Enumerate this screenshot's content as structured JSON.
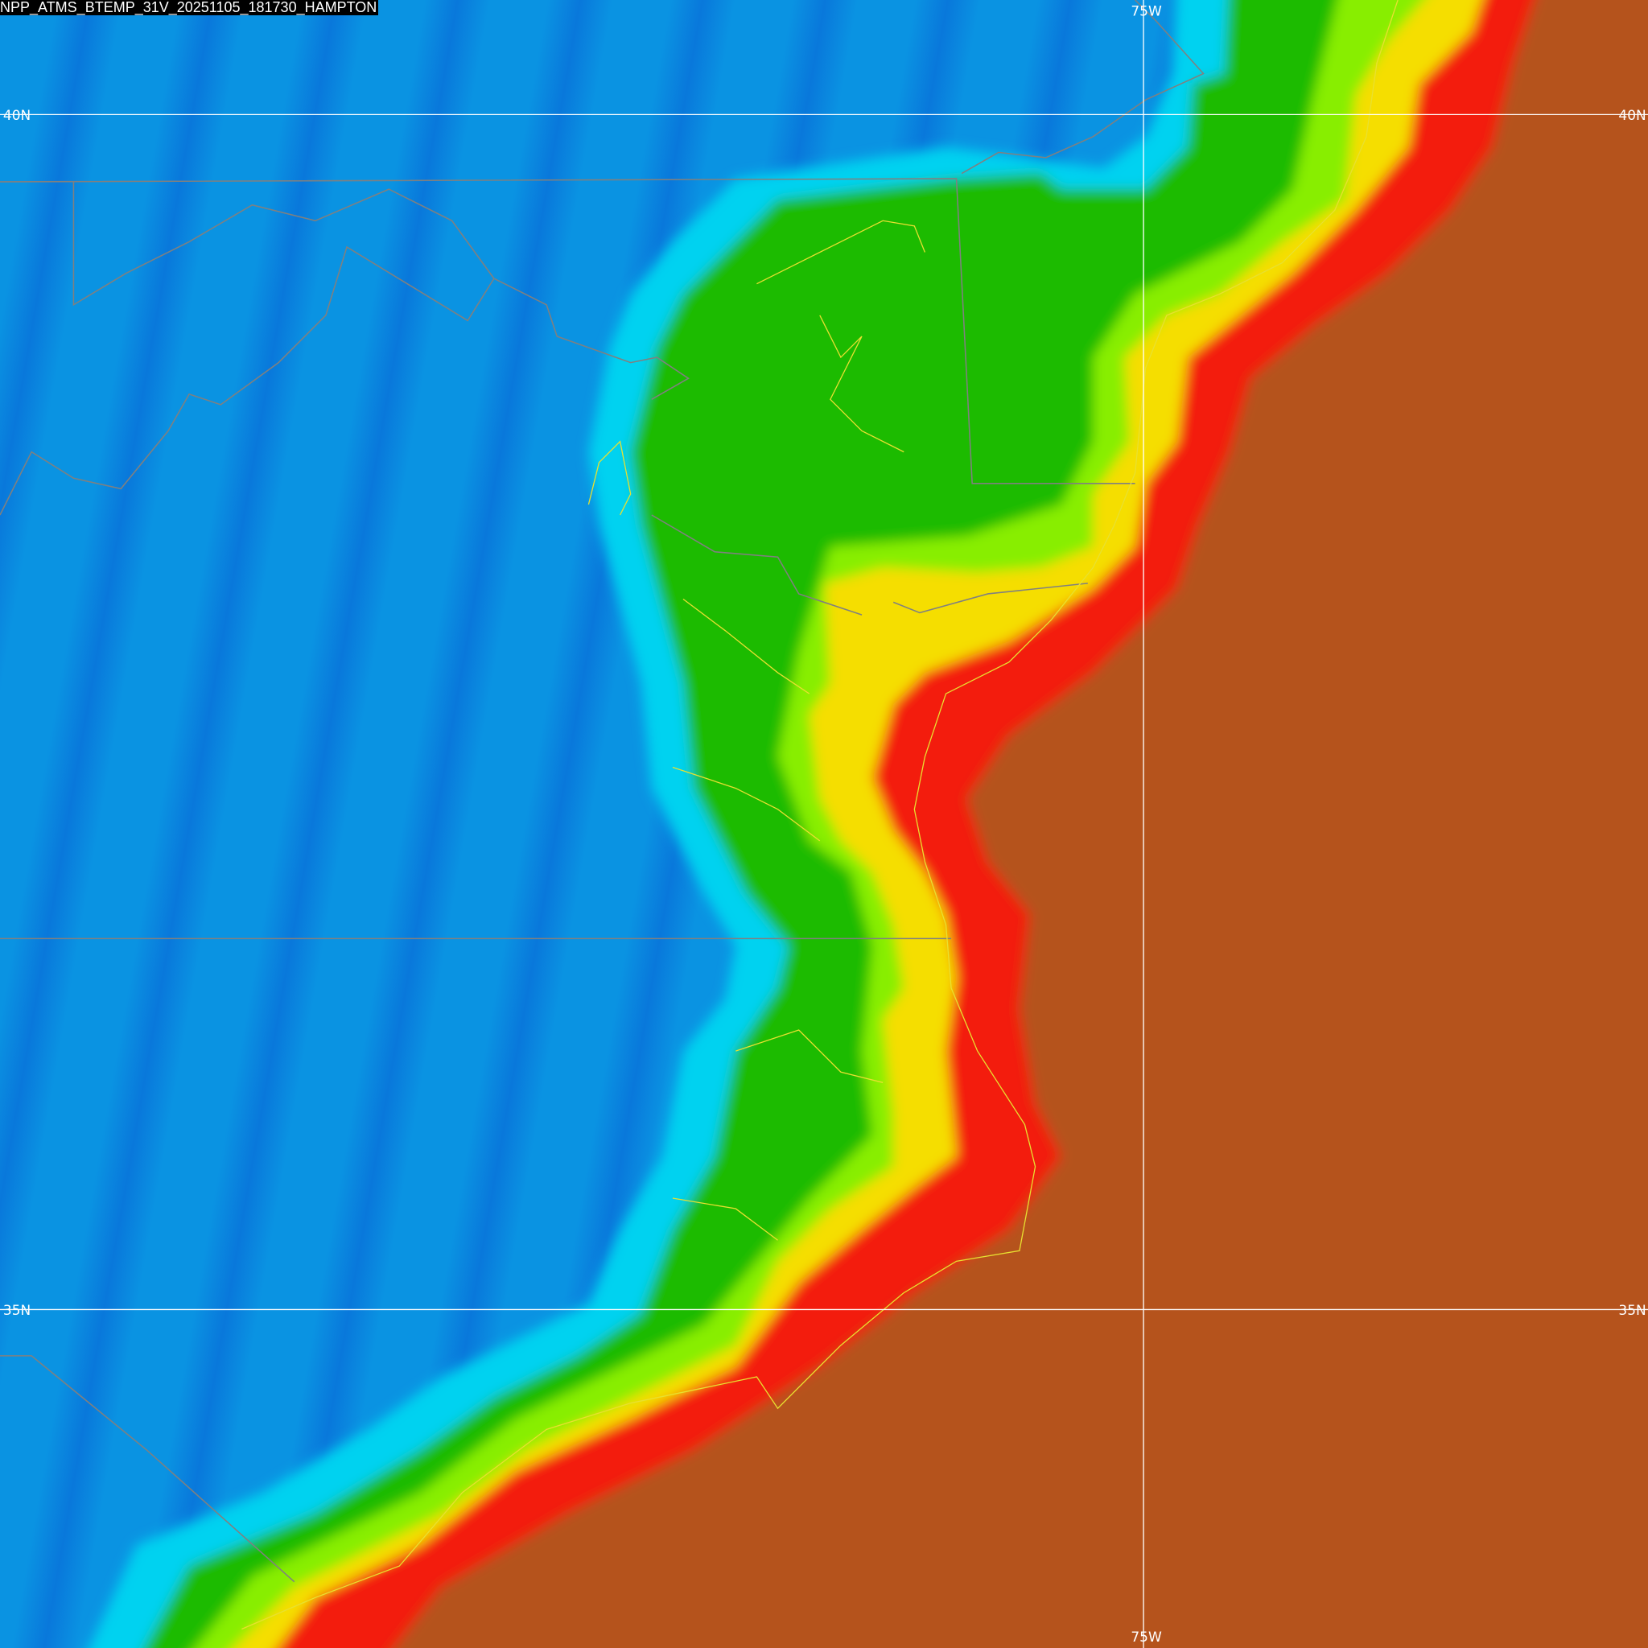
{
  "title": "NPP_ATMS_BTEMP_31V_20251105_181730_HAMPTON",
  "grid_labels": {
    "lon_top": "75W",
    "lon_bottom": "75W",
    "lat40_left": "40N",
    "lat40_right": "40N",
    "lat35_left": "35N",
    "lat35_right": "35N"
  },
  "colors": {
    "cold_blue": "#0978db",
    "cyan": "#00d2f0",
    "green": "#1fbb00",
    "lime": "#88ee00",
    "yellow": "#f5de00",
    "red": "#f31a0a",
    "brown": "#b5521a",
    "gridline": "#ffffff",
    "state_border": "#808080",
    "coastline": "#e8e030"
  }
}
